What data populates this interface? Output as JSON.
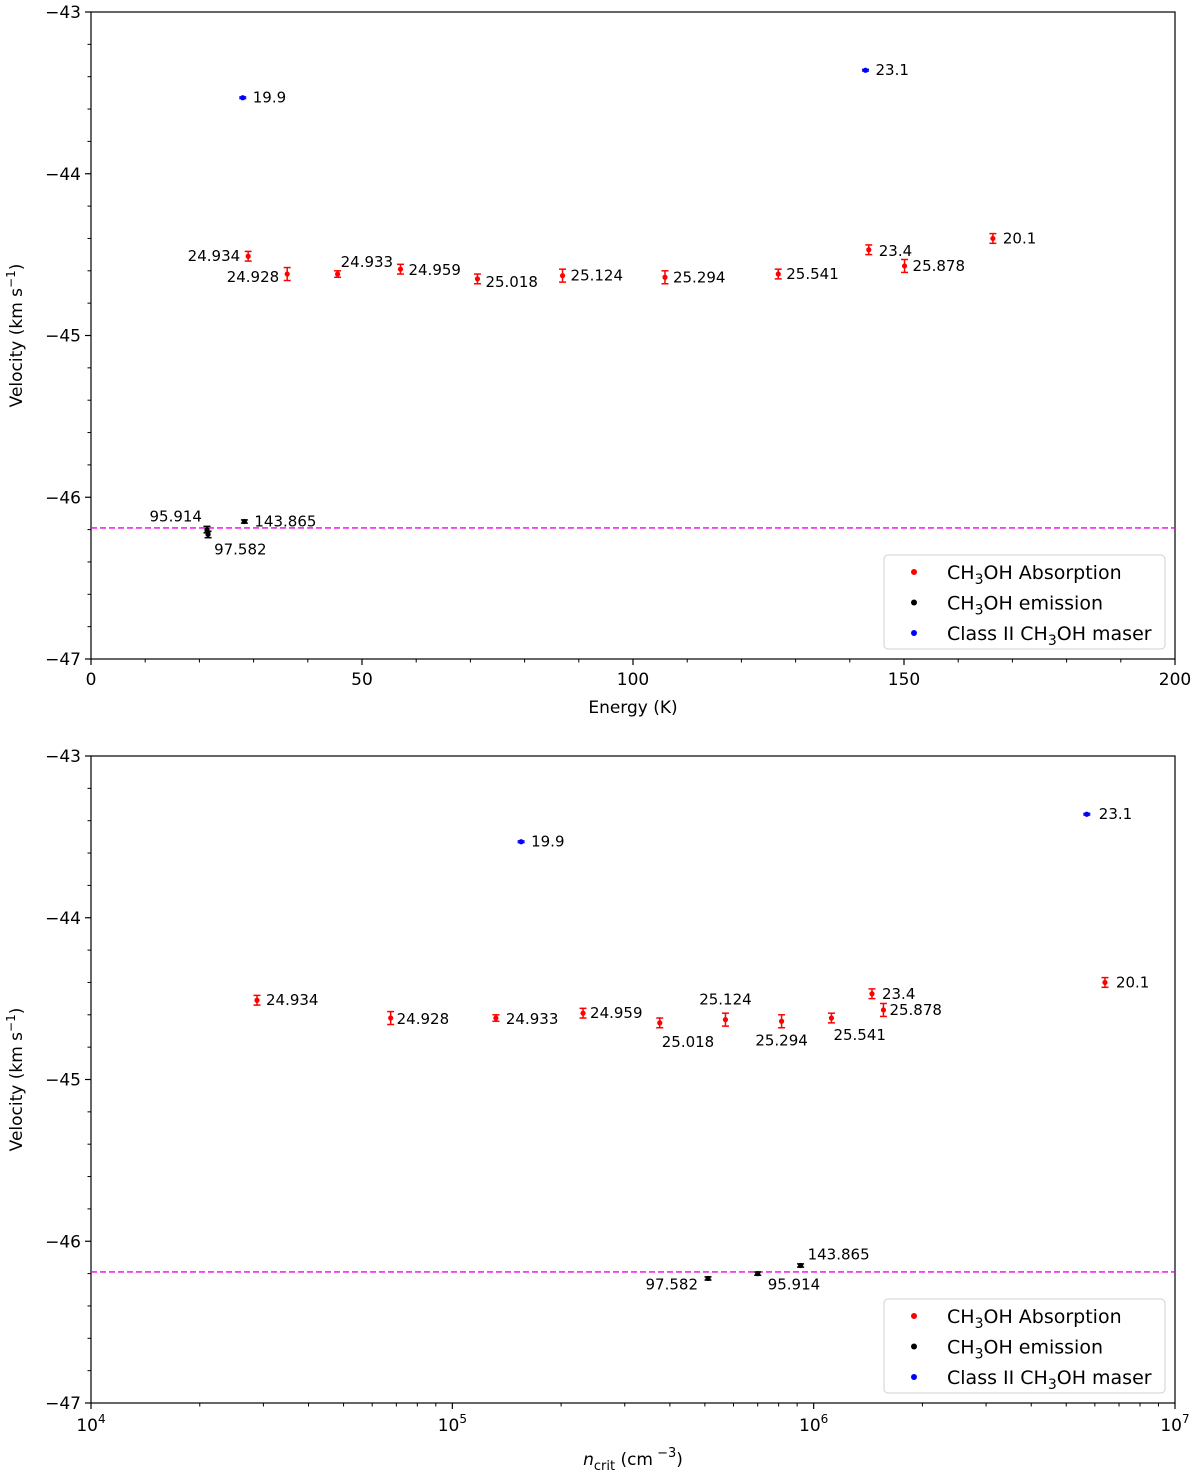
{
  "chart_data": [
    {
      "type": "scatter",
      "xscale": "linear",
      "xlabel": "Energy (K)",
      "ylabel": "Velocity (km s",
      "ylabel_sup": "−1",
      "ylabel_close": ")",
      "xlim": [
        0,
        200
      ],
      "ylim": [
        -47,
        -43
      ],
      "xticks": [
        0,
        50,
        100,
        150,
        200
      ],
      "xtick_labels": [
        "0",
        "50",
        "100",
        "150",
        "200"
      ],
      "yticks": [
        -47,
        -46,
        -45,
        -44,
        -43
      ],
      "ytick_labels": [
        "−47",
        "−46",
        "−45",
        "−44",
        "−43"
      ],
      "hline": {
        "y": -46.19,
        "color": "#ee00ee",
        "style": "dashed"
      },
      "legend": {
        "loc": "lower right"
      },
      "series": [
        {
          "name": "CH3OH Absorption",
          "legend_parts": [
            "CH",
            "3",
            "OH Absorption"
          ],
          "color": "#ff0000",
          "points": [
            {
              "x": 29.0,
              "y": -44.51,
              "err": 0.03,
              "label": "24.934",
              "anchor": "end",
              "dx": -8,
              "dy": 5
            },
            {
              "x": 36.2,
              "y": -44.62,
              "err": 0.04,
              "label": "24.928",
              "anchor": "end",
              "dx": -8,
              "dy": 8
            },
            {
              "x": 45.5,
              "y": -44.62,
              "err": 0.02,
              "label": "24.933",
              "anchor": "start",
              "dx": 3,
              "dy": -7
            },
            {
              "x": 57.1,
              "y": -44.59,
              "err": 0.03,
              "label": "24.959",
              "anchor": "start",
              "dx": 8,
              "dy": 6
            },
            {
              "x": 71.3,
              "y": -44.65,
              "err": 0.03,
              "label": "25.018",
              "anchor": "start",
              "dx": 8,
              "dy": 8
            },
            {
              "x": 87.0,
              "y": -44.63,
              "err": 0.04,
              "label": "25.124",
              "anchor": "start",
              "dx": 8,
              "dy": 5
            },
            {
              "x": 105.9,
              "y": -44.64,
              "err": 0.04,
              "label": "25.294",
              "anchor": "start",
              "dx": 8,
              "dy": 5
            },
            {
              "x": 126.8,
              "y": -44.62,
              "err": 0.03,
              "label": "25.541",
              "anchor": "start",
              "dx": 8,
              "dy": 5
            },
            {
              "x": 143.5,
              "y": -44.47,
              "err": 0.03,
              "label": "23.4",
              "anchor": "start",
              "dx": 10,
              "dy": 6
            },
            {
              "x": 150.1,
              "y": -44.57,
              "err": 0.04,
              "label": "25.878",
              "anchor": "start",
              "dx": 8,
              "dy": 5
            },
            {
              "x": 166.4,
              "y": -44.4,
              "err": 0.03,
              "label": "20.1",
              "anchor": "start",
              "dx": 10,
              "dy": 5
            }
          ]
        },
        {
          "name": "CH3OH emission",
          "legend_parts": [
            "CH",
            "3",
            "OH emission"
          ],
          "color": "#000000",
          "points": [
            {
              "x": 21.4,
              "y": -46.2,
              "err": 0.02,
              "label": "95.914",
              "anchor": "end",
              "dx": -5,
              "dy": -8
            },
            {
              "x": 21.6,
              "y": -46.23,
              "err": 0.02,
              "label": "97.582",
              "anchor": "start",
              "dx": 6,
              "dy": 20
            },
            {
              "x": 28.3,
              "y": -46.15,
              "err": 0.01,
              "label": "143.865",
              "anchor": "start",
              "dx": 10,
              "dy": 5
            }
          ]
        },
        {
          "name": "Class II CH3OH maser",
          "legend_parts": [
            "Class II CH",
            "3",
            "OH maser"
          ],
          "color": "#0000ff",
          "points": [
            {
              "x": 28.0,
              "y": -43.53,
              "err": 0.005,
              "label": "19.9",
              "anchor": "start",
              "dx": 10,
              "dy": 5
            },
            {
              "x": 142.9,
              "y": -43.36,
              "err": 0.005,
              "label": "23.1",
              "anchor": "start",
              "dx": 10,
              "dy": 5
            }
          ]
        }
      ]
    },
    {
      "type": "scatter",
      "xscale": "log",
      "xlabel_italic": "n",
      "xlabel_sub": "crit",
      "xlabel_rest": " (cm",
      "xlabel_sup": " −3",
      "xlabel_close": ")",
      "ylabel": "Velocity (km s",
      "ylabel_sup": "−1",
      "ylabel_close": ")",
      "xlim": [
        10000,
        10000000
      ],
      "ylim": [
        -47,
        -43
      ],
      "xticks_major": [
        10000,
        100000,
        1000000,
        10000000
      ],
      "xtick_base": [
        "10",
        "10",
        "10",
        "10"
      ],
      "xtick_exp": [
        "4",
        "5",
        "6",
        "7"
      ],
      "yticks": [
        -47,
        -46,
        -45,
        -44,
        -43
      ],
      "ytick_labels": [
        "−47",
        "−46",
        "−45",
        "−44",
        "−43"
      ],
      "hline": {
        "y": -46.19,
        "color": "#ee00ee",
        "style": "dashed"
      },
      "legend": {
        "loc": "lower right"
      },
      "series": [
        {
          "name": "CH3OH Absorption",
          "legend_parts": [
            "CH",
            "3",
            "OH Absorption"
          ],
          "color": "#ff0000",
          "points": [
            {
              "x": 28800,
              "y": -44.51,
              "err": 0.03,
              "label": "24.934",
              "anchor": "start",
              "dx": 9,
              "dy": 5
            },
            {
              "x": 67500,
              "y": -44.62,
              "err": 0.04,
              "label": "24.928",
              "anchor": "start",
              "dx": 6,
              "dy": 6
            },
            {
              "x": 132000,
              "y": -44.62,
              "err": 0.02,
              "label": "24.933",
              "anchor": "start",
              "dx": 10,
              "dy": 6
            },
            {
              "x": 230000,
              "y": -44.59,
              "err": 0.03,
              "label": "24.959",
              "anchor": "start",
              "dx": 7,
              "dy": 5
            },
            {
              "x": 375000,
              "y": -44.65,
              "err": 0.03,
              "label": "25.018",
              "anchor": "start",
              "dx": 2,
              "dy": 24
            },
            {
              "x": 570000,
              "y": -44.63,
              "err": 0.04,
              "label": "25.124",
              "anchor": "middle",
              "dx": 0,
              "dy": -15
            },
            {
              "x": 815000,
              "y": -44.64,
              "err": 0.04,
              "label": "25.294",
              "anchor": "middle",
              "dx": 0,
              "dy": 24
            },
            {
              "x": 1120000,
              "y": -44.62,
              "err": 0.03,
              "label": "25.541",
              "anchor": "start",
              "dx": 2,
              "dy": 22
            },
            {
              "x": 1450000,
              "y": -44.47,
              "err": 0.03,
              "label": "23.4",
              "anchor": "start",
              "dx": 10,
              "dy": 5
            },
            {
              "x": 1560000,
              "y": -44.57,
              "err": 0.04,
              "label": "25.878",
              "anchor": "start",
              "dx": 6,
              "dy": 5
            },
            {
              "x": 6400000,
              "y": -44.4,
              "err": 0.03,
              "label": "20.1",
              "anchor": "start",
              "dx": 11,
              "dy": 5
            }
          ]
        },
        {
          "name": "CH3OH emission",
          "legend_parts": [
            "CH",
            "3",
            "OH emission"
          ],
          "color": "#000000",
          "points": [
            {
              "x": 510000,
              "y": -46.23,
              "err": 0.01,
              "label": "97.582",
              "anchor": "end",
              "dx": -10,
              "dy": 11
            },
            {
              "x": 700000,
              "y": -46.2,
              "err": 0.01,
              "label": "95.914",
              "anchor": "start",
              "dx": 10,
              "dy": 16
            },
            {
              "x": 920000,
              "y": -46.15,
              "err": 0.01,
              "label": "143.865",
              "anchor": "start",
              "dx": 7,
              "dy": -6
            }
          ]
        },
        {
          "name": "Class II CH3OH maser",
          "legend_parts": [
            "Class II CH",
            "3",
            "OH maser"
          ],
          "color": "#0000ff",
          "points": [
            {
              "x": 155000,
              "y": -43.53,
              "err": 0.005,
              "label": "19.9",
              "anchor": "start",
              "dx": 10,
              "dy": 5
            },
            {
              "x": 5700000,
              "y": -43.36,
              "err": 0.005,
              "label": "23.1",
              "anchor": "start",
              "dx": 12,
              "dy": 5
            }
          ]
        }
      ]
    }
  ]
}
